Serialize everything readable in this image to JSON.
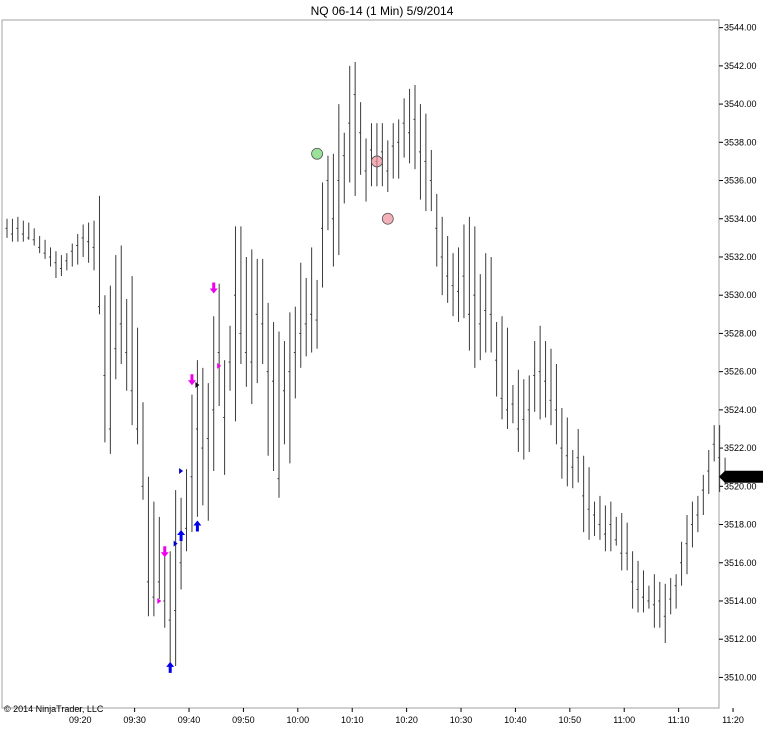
{
  "chart_data": {
    "type": "ohlc",
    "title": "NQ 06-14 (1 Min)  5/9/2014",
    "copyright": "© 2014 NinjaTrader, LLC",
    "last_price_label": "3520.50",
    "ylim": [
      3508.4,
      3544.4
    ],
    "y_ticks": [
      "3510.00",
      "3512.00",
      "3514.00",
      "3516.00",
      "3518.00",
      "3520.00",
      "3522.00",
      "3524.00",
      "3526.00",
      "3528.00",
      "3530.00",
      "3532.00",
      "3534.00",
      "3536.00",
      "3538.00",
      "3540.00",
      "3542.00",
      "3544.00"
    ],
    "x_ticks": [
      {
        "label": "09:20",
        "bar": 13
      },
      {
        "label": "09:30",
        "bar": 23
      },
      {
        "label": "09:40",
        "bar": 33
      },
      {
        "label": "09:50",
        "bar": 43
      },
      {
        "label": "10:00",
        "bar": 53
      },
      {
        "label": "10:10",
        "bar": 63
      },
      {
        "label": "10:20",
        "bar": 73
      },
      {
        "label": "10:30",
        "bar": 83
      },
      {
        "label": "10:40",
        "bar": 93
      },
      {
        "label": "10:50",
        "bar": 103
      },
      {
        "label": "11:00",
        "bar": 113
      },
      {
        "label": "11:10",
        "bar": 123
      },
      {
        "label": "11:20",
        "bar": 133
      }
    ],
    "bars": [
      [
        3534.0,
        3533.0,
        3533.5
      ],
      [
        3534.0,
        3532.8,
        3533.2
      ],
      [
        3534.1,
        3532.8,
        3533.5
      ],
      [
        3533.9,
        3532.8,
        3533.2
      ],
      [
        3533.8,
        3532.9,
        3533.0
      ],
      [
        3533.5,
        3532.6,
        3532.9
      ],
      [
        3533.1,
        3532.2,
        3532.5
      ],
      [
        3532.9,
        3531.9,
        3532.2
      ],
      [
        3532.5,
        3531.5,
        3532.0
      ],
      [
        3532.3,
        3530.9,
        3531.7
      ],
      [
        3532.1,
        3531.0,
        3531.4
      ],
      [
        3532.2,
        3531.3,
        3531.8
      ],
      [
        3532.7,
        3531.5,
        3532.3
      ],
      [
        3533.2,
        3531.6,
        3532.6
      ],
      [
        3533.7,
        3532.0,
        3533.0
      ],
      [
        3533.8,
        3531.7,
        3532.8
      ],
      [
        3533.9,
        3531.3,
        3532.5
      ],
      [
        3535.2,
        3529.0,
        3529.4
      ],
      [
        3530.0,
        3522.3,
        3525.8
      ],
      [
        3530.5,
        3521.7,
        3523.0
      ],
      [
        3532.1,
        3525.6,
        3527.2
      ],
      [
        3532.6,
        3526.4,
        3528.5
      ],
      [
        3529.8,
        3525.0,
        3527.0
      ],
      [
        3531.0,
        3523.2,
        3525.0
      ],
      [
        3528.3,
        3522.2,
        3523.0
      ],
      [
        3524.4,
        3519.3,
        3520.0
      ],
      [
        3520.5,
        3513.2,
        3515.0
      ],
      [
        3519.2,
        3513.2,
        3514.2
      ],
      [
        3518.4,
        3514.1,
        3515.0
      ],
      [
        3516.4,
        3512.6,
        3514.0
      ],
      [
        3516.6,
        3510.4,
        3513.0
      ],
      [
        3519.8,
        3510.6,
        3513.5
      ],
      [
        3519.4,
        3514.6,
        3516.0
      ],
      [
        3520.9,
        3516.6,
        3517.8
      ],
      [
        3524.8,
        3517.6,
        3520.5
      ],
      [
        3526.6,
        3518.4,
        3523.0
      ],
      [
        3526.2,
        3519.0,
        3522.0
      ],
      [
        3525.4,
        3518.2,
        3522.5
      ],
      [
        3528.9,
        3520.8,
        3524.0
      ],
      [
        3530.6,
        3524.2,
        3527.0
      ],
      [
        3526.6,
        3520.6,
        3523.6
      ],
      [
        3528.4,
        3525.0,
        3526.5
      ],
      [
        3533.6,
        3523.4,
        3530.0
      ],
      [
        3533.6,
        3526.4,
        3528.0
      ],
      [
        3532.0,
        3525.2,
        3527.0
      ],
      [
        3532.4,
        3524.3,
        3526.5
      ],
      [
        3531.9,
        3525.4,
        3529.0
      ],
      [
        3531.9,
        3526.4,
        3528.5
      ],
      [
        3529.6,
        3521.6,
        3526.0
      ],
      [
        3528.6,
        3520.8,
        3525.5
      ],
      [
        3528.1,
        3519.4,
        3520.4
      ],
      [
        3527.6,
        3522.2,
        3525.0
      ],
      [
        3529.1,
        3521.2,
        3526.0
      ],
      [
        3529.4,
        3524.6,
        3527.0
      ],
      [
        3531.7,
        3526.2,
        3528.0
      ],
      [
        3530.9,
        3526.8,
        3528.5
      ],
      [
        3532.5,
        3527.0,
        3529.0
      ],
      [
        3530.8,
        3527.2,
        3528.7
      ],
      [
        3535.9,
        3530.4,
        3533.5
      ],
      [
        3537.3,
        3533.4,
        3536.0
      ],
      [
        3537.4,
        3531.5,
        3534.0
      ],
      [
        3540.0,
        3532.1,
        3536.0
      ],
      [
        3538.5,
        3534.8,
        3537.3
      ],
      [
        3542.0,
        3535.9,
        3539.0
      ],
      [
        3542.2,
        3535.2,
        3540.5
      ],
      [
        3540.1,
        3536.3,
        3538.5
      ],
      [
        3538.2,
        3534.9,
        3536.5
      ],
      [
        3539.0,
        3535.7,
        3537.6
      ],
      [
        3539.0,
        3535.7,
        3537.0
      ],
      [
        3539.0,
        3535.7,
        3537.5
      ],
      [
        3538.1,
        3535.4,
        3536.5
      ],
      [
        3539.0,
        3536.1,
        3537.8
      ],
      [
        3539.2,
        3536.1,
        3538.0
      ],
      [
        3540.3,
        3537.2,
        3539.0
      ],
      [
        3540.8,
        3536.9,
        3538.5
      ],
      [
        3541.0,
        3536.6,
        3539.2
      ],
      [
        3540.0,
        3535.0,
        3537.5
      ],
      [
        3539.5,
        3534.4,
        3537.0
      ],
      [
        3537.6,
        3534.4,
        3536.0
      ],
      [
        3535.3,
        3531.5,
        3533.5
      ],
      [
        3534.1,
        3530.0,
        3532.0
      ],
      [
        3533.1,
        3529.6,
        3531.0
      ],
      [
        3532.2,
        3528.9,
        3530.5
      ],
      [
        3532.5,
        3528.6,
        3530.2
      ],
      [
        3533.7,
        3528.8,
        3531.0
      ],
      [
        3534.1,
        3527.1,
        3529.0
      ],
      [
        3533.6,
        3526.2,
        3530.0
      ],
      [
        3531.1,
        3526.6,
        3528.5
      ],
      [
        3532.2,
        3527.0,
        3529.2
      ],
      [
        3532.0,
        3527.0,
        3529.0
      ],
      [
        3528.6,
        3524.7,
        3526.6
      ],
      [
        3528.9,
        3523.5,
        3524.6
      ],
      [
        3528.3,
        3523.0,
        3524.0
      ],
      [
        3525.3,
        3523.3,
        3524.3
      ],
      [
        3526.1,
        3521.8,
        3523.0
      ],
      [
        3525.6,
        3521.4,
        3523.5
      ],
      [
        3525.8,
        3521.8,
        3524.0
      ],
      [
        3527.6,
        3523.9,
        3525.8
      ],
      [
        3528.4,
        3523.5,
        3526.0
      ],
      [
        3527.6,
        3523.6,
        3525.5
      ],
      [
        3527.2,
        3523.2,
        3524.5
      ],
      [
        3526.4,
        3522.2,
        3524.0
      ],
      [
        3524.1,
        3520.4,
        3522.0
      ],
      [
        3523.6,
        3520.0,
        3521.6
      ],
      [
        3521.9,
        3519.9,
        3521.0
      ],
      [
        3523.0,
        3520.2,
        3521.5
      ],
      [
        3521.6,
        3517.6,
        3519.5
      ],
      [
        3521.0,
        3517.2,
        3518.8
      ],
      [
        3519.2,
        3517.4,
        3518.5
      ],
      [
        3519.5,
        3517.2,
        3518.0
      ],
      [
        3519.0,
        3516.6,
        3517.5
      ],
      [
        3519.2,
        3516.6,
        3518.0
      ],
      [
        3518.4,
        3516.9,
        3517.2
      ],
      [
        3518.6,
        3515.6,
        3516.5
      ],
      [
        3518.1,
        3515.6,
        3516.5
      ],
      [
        3516.6,
        3513.6,
        3515.0
      ],
      [
        3516.1,
        3513.4,
        3514.6
      ],
      [
        3515.6,
        3513.4,
        3514.2
      ],
      [
        3514.8,
        3513.6,
        3514.0
      ],
      [
        3515.4,
        3512.6,
        3513.8
      ],
      [
        3515.0,
        3512.6,
        3514.0
      ],
      [
        3514.9,
        3511.8,
        3513.2
      ],
      [
        3515.2,
        3513.3,
        3514.1
      ],
      [
        3515.4,
        3513.6,
        3514.8
      ],
      [
        3517.1,
        3514.8,
        3516.0
      ],
      [
        3518.5,
        3515.4,
        3517.0
      ],
      [
        3519.2,
        3516.8,
        3518.0
      ],
      [
        3519.5,
        3517.6,
        3518.5
      ],
      [
        3520.6,
        3518.5,
        3519.8
      ],
      [
        3521.9,
        3519.6,
        3520.8
      ],
      [
        3523.2,
        3521.3,
        3522.2
      ],
      [
        3523.2,
        3519.7,
        3521.5
      ],
      [
        3521.5,
        3520.1,
        3520.5
      ]
    ],
    "markers": [
      {
        "kind": "arrow-up",
        "color": "#0000ee",
        "bar": 30,
        "price": 3510.5
      },
      {
        "kind": "arrow-up",
        "color": "#0000ee",
        "bar": 32,
        "price": 3517.4
      },
      {
        "kind": "arrow-up",
        "color": "#0000ee",
        "bar": 35,
        "price": 3517.9
      },
      {
        "kind": "arrow-down",
        "color": "#ee00ee",
        "bar": 29,
        "price": 3516.6
      },
      {
        "kind": "arrow-down",
        "color": "#ee00ee",
        "bar": 34,
        "price": 3525.6
      },
      {
        "kind": "arrow-down",
        "color": "#ee00ee",
        "bar": 38,
        "price": 3530.4
      },
      {
        "kind": "tri-right",
        "color": "#0000cc",
        "bar": 32,
        "price": 3520.8
      },
      {
        "kind": "tri-right",
        "color": "#0000cc",
        "bar": 31,
        "price": 3517.0
      },
      {
        "kind": "tri-right",
        "color": "#111111",
        "bar": 35,
        "price": 3525.3
      },
      {
        "kind": "tri-right",
        "color": "#ee00ee",
        "bar": 28,
        "price": 3514.0
      },
      {
        "kind": "tri-right",
        "color": "#ee00ee",
        "bar": 39,
        "price": 3526.3
      },
      {
        "kind": "circle",
        "color": "#6fd66f",
        "bar": 57,
        "price": 3537.4
      },
      {
        "kind": "circle",
        "color": "#f08f9a",
        "bar": 68,
        "price": 3537.0
      },
      {
        "kind": "circle",
        "color": "#f08f9a",
        "bar": 70,
        "price": 3534.0
      }
    ]
  }
}
